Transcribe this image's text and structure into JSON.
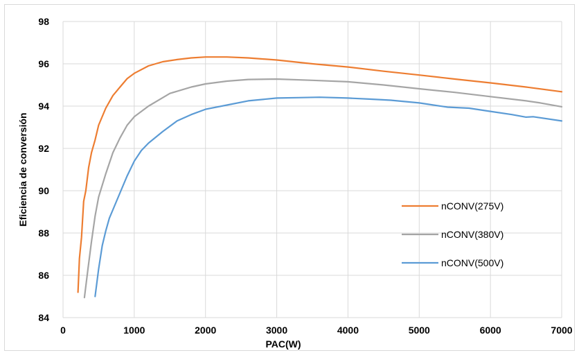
{
  "chart_data": {
    "type": "line",
    "title": "",
    "xlabel": "PAC(W)",
    "ylabel": "Eficiencia de conversión",
    "xlim": [
      0,
      7000
    ],
    "ylim": [
      84,
      98
    ],
    "xticks": [
      "0",
      "1000",
      "2000",
      "3000",
      "4000",
      "5000",
      "6000",
      "7000"
    ],
    "yticks": [
      "84",
      "86",
      "88",
      "90",
      "92",
      "94",
      "96",
      "98"
    ],
    "grid": true,
    "legend_position": "right",
    "series": [
      {
        "name": "nCONV(275V)",
        "color": "#ED7D31",
        "points": [
          [
            210,
            85.2
          ],
          [
            230,
            86.8
          ],
          [
            260,
            87.8
          ],
          [
            290,
            89.5
          ],
          [
            320,
            90.0
          ],
          [
            360,
            91.1
          ],
          [
            400,
            91.8
          ],
          [
            450,
            92.4
          ],
          [
            500,
            93.1
          ],
          [
            600,
            93.9
          ],
          [
            700,
            94.5
          ],
          [
            800,
            94.9
          ],
          [
            900,
            95.3
          ],
          [
            1000,
            95.55
          ],
          [
            1200,
            95.9
          ],
          [
            1400,
            96.1
          ],
          [
            1600,
            96.2
          ],
          [
            1800,
            96.28
          ],
          [
            2000,
            96.32
          ],
          [
            2300,
            96.32
          ],
          [
            2600,
            96.28
          ],
          [
            3000,
            96.18
          ],
          [
            3500,
            96.0
          ],
          [
            4000,
            95.85
          ],
          [
            4500,
            95.65
          ],
          [
            5000,
            95.47
          ],
          [
            5500,
            95.28
          ],
          [
            6000,
            95.1
          ],
          [
            6500,
            94.9
          ],
          [
            7000,
            94.68
          ]
        ]
      },
      {
        "name": "nCONV(380V)",
        "color": "#A5A5A5",
        "points": [
          [
            300,
            84.95
          ],
          [
            350,
            86.3
          ],
          [
            400,
            87.6
          ],
          [
            450,
            88.8
          ],
          [
            500,
            89.7
          ],
          [
            600,
            90.8
          ],
          [
            700,
            91.8
          ],
          [
            800,
            92.5
          ],
          [
            900,
            93.1
          ],
          [
            1000,
            93.5
          ],
          [
            1200,
            94.0
          ],
          [
            1400,
            94.4
          ],
          [
            1500,
            94.6
          ],
          [
            1800,
            94.9
          ],
          [
            2000,
            95.05
          ],
          [
            2300,
            95.18
          ],
          [
            2600,
            95.26
          ],
          [
            3000,
            95.28
          ],
          [
            3500,
            95.22
          ],
          [
            4000,
            95.15
          ],
          [
            4500,
            95.0
          ],
          [
            5000,
            94.82
          ],
          [
            5500,
            94.65
          ],
          [
            6000,
            94.45
          ],
          [
            6500,
            94.25
          ],
          [
            6700,
            94.15
          ],
          [
            7000,
            93.97
          ]
        ]
      },
      {
        "name": "nCONV(500V)",
        "color": "#5B9BD5",
        "points": [
          [
            450,
            85.0
          ],
          [
            500,
            86.3
          ],
          [
            550,
            87.4
          ],
          [
            600,
            88.1
          ],
          [
            650,
            88.7
          ],
          [
            700,
            89.1
          ],
          [
            800,
            89.9
          ],
          [
            900,
            90.7
          ],
          [
            1000,
            91.4
          ],
          [
            1100,
            91.9
          ],
          [
            1200,
            92.25
          ],
          [
            1400,
            92.8
          ],
          [
            1600,
            93.3
          ],
          [
            1800,
            93.6
          ],
          [
            2000,
            93.85
          ],
          [
            2300,
            94.05
          ],
          [
            2600,
            94.25
          ],
          [
            3000,
            94.38
          ],
          [
            3300,
            94.4
          ],
          [
            3600,
            94.42
          ],
          [
            4000,
            94.38
          ],
          [
            4300,
            94.33
          ],
          [
            4600,
            94.28
          ],
          [
            5000,
            94.15
          ],
          [
            5400,
            93.95
          ],
          [
            5700,
            93.9
          ],
          [
            6000,
            93.75
          ],
          [
            6300,
            93.6
          ],
          [
            6500,
            93.48
          ],
          [
            6600,
            93.5
          ],
          [
            7000,
            93.3
          ]
        ]
      }
    ]
  }
}
